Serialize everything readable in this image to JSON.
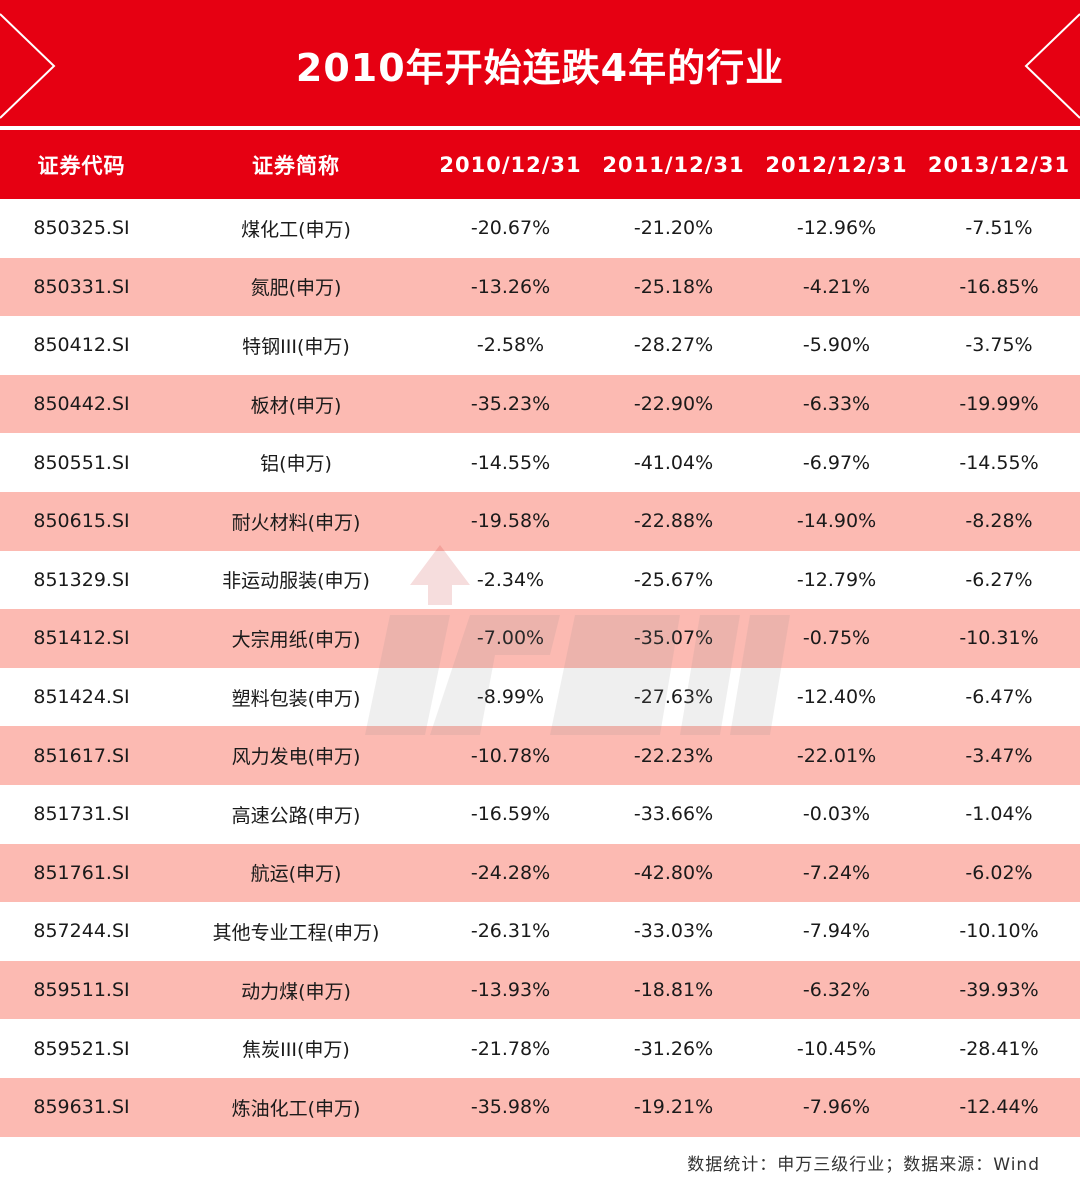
{
  "title": "2010年开始连跌4年的行业",
  "columns": [
    "证券代码",
    "证券简称",
    "2010/12/31",
    "2011/12/31",
    "2012/12/31",
    "2013/12/31"
  ],
  "rows": [
    [
      "850325.SI",
      "煤化工(申万)",
      "-20.67%",
      "-21.20%",
      "-12.96%",
      "-7.51%"
    ],
    [
      "850331.SI",
      "氮肥(申万)",
      "-13.26%",
      "-25.18%",
      "-4.21%",
      "-16.85%"
    ],
    [
      "850412.SI",
      "特钢III(申万)",
      "-2.58%",
      "-28.27%",
      "-5.90%",
      "-3.75%"
    ],
    [
      "850442.SI",
      "板材(申万)",
      "-35.23%",
      "-22.90%",
      "-6.33%",
      "-19.99%"
    ],
    [
      "850551.SI",
      "铝(申万)",
      "-14.55%",
      "-41.04%",
      "-6.97%",
      "-14.55%"
    ],
    [
      "850615.SI",
      "耐火材料(申万)",
      "-19.58%",
      "-22.88%",
      "-14.90%",
      "-8.28%"
    ],
    [
      "851329.SI",
      "非运动服装(申万)",
      "-2.34%",
      "-25.67%",
      "-12.79%",
      "-6.27%"
    ],
    [
      "851412.SI",
      "大宗用纸(申万)",
      "-7.00%",
      "-35.07%",
      "-0.75%",
      "-10.31%"
    ],
    [
      "851424.SI",
      "塑料包装(申万)",
      "-8.99%",
      "-27.63%",
      "-12.40%",
      "-6.47%"
    ],
    [
      "851617.SI",
      "风力发电(申万)",
      "-10.78%",
      "-22.23%",
      "-22.01%",
      "-3.47%"
    ],
    [
      "851731.SI",
      "高速公路(申万)",
      "-16.59%",
      "-33.66%",
      "-0.03%",
      "-1.04%"
    ],
    [
      "851761.SI",
      "航运(申万)",
      "-24.28%",
      "-42.80%",
      "-7.24%",
      "-6.02%"
    ],
    [
      "857244.SI",
      "其他专业工程(申万)",
      "-26.31%",
      "-33.03%",
      "-7.94%",
      "-10.10%"
    ],
    [
      "859511.SI",
      "动力煤(申万)",
      "-13.93%",
      "-18.81%",
      "-6.32%",
      "-39.93%"
    ],
    [
      "859521.SI",
      "焦炭III(申万)",
      "-21.78%",
      "-31.26%",
      "-10.45%",
      "-28.41%"
    ],
    [
      "859631.SI",
      "炼油化工(申万)",
      "-35.98%",
      "-19.21%",
      "-7.96%",
      "-12.44%"
    ]
  ],
  "footer": "数据统计：申万三级行业；数据来源：Wind",
  "colors": {
    "accent": "#e60012",
    "alt_row": "#fcbab2",
    "text": "#1a1a1a"
  }
}
